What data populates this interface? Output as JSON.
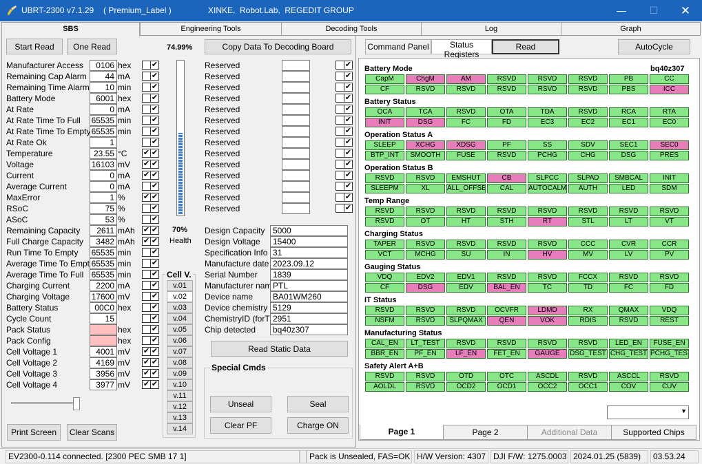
{
  "window": {
    "title": "UBRT-2300 v7.1.29",
    "label": "( Premium_Label )",
    "vendor": "XINKE,  Robot.Lab,  REGEDIT GROUP"
  },
  "main_tabs": [
    "SBS",
    "Engineering Tools",
    "Decoding Tools",
    "Log",
    "Graph"
  ],
  "buttons": {
    "start_read": "Start Read",
    "one_read": "One Read",
    "copy": "Copy Data To Decoding Board",
    "read_static": "Read Static Data",
    "print": "Print Screen",
    "clear_scans": "Clear Scans",
    "command_panel": "Command Panel",
    "status_registers": "Status Registers",
    "read": "Read",
    "autocycle": "AutoCycle"
  },
  "percent": "74.99%",
  "charge_fraction": 0.75,
  "health": {
    "value": "70%",
    "label": "Health"
  },
  "sbs": [
    {
      "label": "Manufacturer Access",
      "value": "0106",
      "unit": "hex",
      "c1": false,
      "c2": true
    },
    {
      "label": "Remaining Cap Alarm",
      "value": "44",
      "unit": "mA",
      "c1": false,
      "c2": true
    },
    {
      "label": "Remaining Time Alarm",
      "value": "10",
      "unit": "min",
      "c1": false,
      "c2": true
    },
    {
      "label": "Battery Mode",
      "value": "6001",
      "unit": "hex",
      "c1": false,
      "c2": true
    },
    {
      "label": "At Rate",
      "value": "0",
      "unit": "mA",
      "c1": false,
      "c2": true
    },
    {
      "label": "At Rate Time To Full",
      "value": "65535",
      "unit": "min",
      "c1": false,
      "c2": true
    },
    {
      "label": "At Rate Time To Empty",
      "value": "65535",
      "unit": "min",
      "c1": false,
      "c2": true
    },
    {
      "label": "At Rate Ok",
      "value": "1",
      "unit": "",
      "c1": false,
      "c2": true
    },
    {
      "label": "Temperature",
      "value": "23.55",
      "unit": "°C",
      "c1": true,
      "c2": true
    },
    {
      "label": "Voltage",
      "value": "16103",
      "unit": "mV",
      "c1": true,
      "c2": true
    },
    {
      "label": "Current",
      "value": "0",
      "unit": "mA",
      "c1": true,
      "c2": true
    },
    {
      "label": "Average Current",
      "value": "0",
      "unit": "mA",
      "c1": false,
      "c2": true
    },
    {
      "label": "MaxError",
      "value": "1",
      "unit": "%",
      "c1": true,
      "c2": true
    },
    {
      "label": "RSoC",
      "value": "75",
      "unit": "%",
      "c1": false,
      "c2": true
    },
    {
      "label": "ASoC",
      "value": "53",
      "unit": "%",
      "c1": false,
      "c2": true
    },
    {
      "label": "Remaining Capacity",
      "value": "2611",
      "unit": "mAh",
      "c1": true,
      "c2": true
    },
    {
      "label": "Full Charge Capacity",
      "value": "3482",
      "unit": "mAh",
      "c1": true,
      "c2": true
    },
    {
      "label": "Run Time To Empty",
      "value": "65535",
      "unit": "min",
      "c1": false,
      "c2": true
    },
    {
      "label": "Average Time To Empty",
      "value": "65535",
      "unit": "min",
      "c1": false,
      "c2": true
    },
    {
      "label": "Average Time To Full",
      "value": "65535",
      "unit": "min",
      "c1": false,
      "c2": true
    },
    {
      "label": "Charging Current",
      "value": "2200",
      "unit": "mA",
      "c1": false,
      "c2": true
    },
    {
      "label": "Charging Voltage",
      "value": "17600",
      "unit": "mV",
      "c1": false,
      "c2": true
    },
    {
      "label": "Battery Status",
      "value": "00C0",
      "unit": "hex",
      "c1": false,
      "c2": true
    },
    {
      "label": "Cycle Count",
      "value": "15",
      "unit": "",
      "c1": false,
      "c2": true
    },
    {
      "label": "Pack Status",
      "value": "",
      "unit": "hex",
      "c1": false,
      "c2": true,
      "pink": true
    },
    {
      "label": "Pack Config",
      "value": "",
      "unit": "hex",
      "c1": false,
      "c2": true,
      "pink": true
    },
    {
      "label": "Cell Voltage 1",
      "value": "4001",
      "unit": "mV",
      "c1": true,
      "c2": true
    },
    {
      "label": "Cell Voltage 2",
      "value": "4169",
      "unit": "mV",
      "c1": true,
      "c2": true
    },
    {
      "label": "Cell Voltage 3",
      "value": "3956",
      "unit": "mV",
      "c1": true,
      "c2": true
    },
    {
      "label": "Cell Voltage 4",
      "value": "3977",
      "unit": "mV",
      "c1": true,
      "c2": true
    }
  ],
  "reserved": [
    {
      "label": "Reserved",
      "value": "",
      "c1": false,
      "c2": true
    },
    {
      "label": "Reserved",
      "value": "",
      "c1": false,
      "c2": true
    },
    {
      "label": "Reserved",
      "value": "",
      "c1": false,
      "c2": true
    },
    {
      "label": "Reserved",
      "value": "",
      "c1": false,
      "c2": true
    },
    {
      "label": "Reserved",
      "value": "",
      "c1": false,
      "c2": true
    },
    {
      "label": "Reserved",
      "value": "",
      "c1": false,
      "c2": true
    },
    {
      "label": "Reserved",
      "value": "",
      "c1": false,
      "c2": true
    },
    {
      "label": "Reserved",
      "value": "",
      "c1": false,
      "c2": true
    },
    {
      "label": "Reserved",
      "value": "",
      "c1": false,
      "c2": true
    },
    {
      "label": "Reserved",
      "value": "",
      "c1": false,
      "c2": true
    },
    {
      "label": "Reserved",
      "value": "",
      "c1": false,
      "c2": true
    },
    {
      "label": "Reserved",
      "value": "",
      "c1": false,
      "c2": true
    },
    {
      "label": "Reserved",
      "value": "",
      "c1": false,
      "c2": true
    },
    {
      "label": "Reserved",
      "value": "",
      "c1": false,
      "c2": true
    }
  ],
  "static": [
    {
      "label": "Design Capacity",
      "value": "5000"
    },
    {
      "label": "Design Voltage",
      "value": "15400"
    },
    {
      "label": "Specification Info",
      "value": "31"
    },
    {
      "label": "Manufacture date",
      "value": "2023.09.12"
    },
    {
      "label": "Serial Number",
      "value": "1839"
    },
    {
      "label": "Manufacturer name",
      "value": "PTL"
    },
    {
      "label": "Device name",
      "value": "BA01WM260"
    },
    {
      "label": "Device chemistry",
      "value": "5129"
    },
    {
      "label": "ChemistryID (forTI)",
      "value": "2951"
    },
    {
      "label": "Chip detected",
      "value": "bq40z307"
    }
  ],
  "cell_v": {
    "title": "Cell V.",
    "buttons": [
      "v.01",
      "v.02",
      "v.03",
      "v.04",
      "v.05",
      "v.06",
      "v.07",
      "v.08",
      "v.09",
      "v.10",
      "v.11",
      "v.12",
      "v.13",
      "v.14"
    ]
  },
  "special": {
    "title": "Special Cmds",
    "unseal": "Unseal",
    "seal": "Seal",
    "clear_pf": "Clear PF",
    "charge_on": "Charge ON"
  },
  "chip": "bq40z307",
  "sections": [
    {
      "title": "Battery Mode",
      "rows": [
        [
          [
            "CapM",
            "g"
          ],
          [
            "ChgM",
            "p"
          ],
          [
            "AM",
            "p"
          ],
          [
            "RSVD",
            "g"
          ],
          [
            "RSVD",
            "g"
          ],
          [
            "RSVD",
            "g"
          ],
          [
            "PB",
            "g"
          ],
          [
            "CC",
            "g"
          ]
        ],
        [
          [
            "CF",
            "g"
          ],
          [
            "RSVD",
            "g"
          ],
          [
            "RSVD",
            "g"
          ],
          [
            "RSVD",
            "g"
          ],
          [
            "RSVD",
            "g"
          ],
          [
            "RSVD",
            "g"
          ],
          [
            "PBS",
            "g"
          ],
          [
            "ICC",
            "p"
          ]
        ]
      ]
    },
    {
      "title": "Battery Status",
      "rows": [
        [
          [
            "OCA",
            "g"
          ],
          [
            "TCA",
            "g"
          ],
          [
            "RSVD",
            "g"
          ],
          [
            "OTA",
            "g"
          ],
          [
            "TDA",
            "g"
          ],
          [
            "RSVD",
            "g"
          ],
          [
            "RCA",
            "g"
          ],
          [
            "RTA",
            "g"
          ]
        ],
        [
          [
            "INIT",
            "p"
          ],
          [
            "DSG",
            "p"
          ],
          [
            "FC",
            "g"
          ],
          [
            "FD",
            "g"
          ],
          [
            "EC3",
            "g"
          ],
          [
            "EC2",
            "g"
          ],
          [
            "EC1",
            "g"
          ],
          [
            "EC0",
            "g"
          ]
        ]
      ]
    },
    {
      "title": "Operation Status A",
      "rows": [
        [
          [
            "SLEEP",
            "g"
          ],
          [
            "XCHG",
            "p"
          ],
          [
            "XDSG",
            "p"
          ],
          [
            "PF",
            "g"
          ],
          [
            "SS",
            "g"
          ],
          [
            "SDV",
            "g"
          ],
          [
            "SEC1",
            "g"
          ],
          [
            "SEC0",
            "p"
          ]
        ],
        [
          [
            "BTP_INT",
            "g"
          ],
          [
            "SMOOTH",
            "g"
          ],
          [
            "FUSE",
            "g"
          ],
          [
            "RSVD",
            "g"
          ],
          [
            "PCHG",
            "g"
          ],
          [
            "CHG",
            "g"
          ],
          [
            "DSG",
            "g"
          ],
          [
            "PRES",
            "g"
          ]
        ]
      ]
    },
    {
      "title": "Operation Status B",
      "rows": [
        [
          [
            "RSVD",
            "g"
          ],
          [
            "RSVD",
            "g"
          ],
          [
            "EMSHUT",
            "g"
          ],
          [
            "CB",
            "p"
          ],
          [
            "SLPCC",
            "g"
          ],
          [
            "SLPAD",
            "g"
          ],
          [
            "SMBCAL",
            "g"
          ],
          [
            "INIT",
            "g"
          ]
        ],
        [
          [
            "SLEEPM",
            "g"
          ],
          [
            "XL",
            "g"
          ],
          [
            "ALL_OFFSE",
            "g"
          ],
          [
            "CAL",
            "g"
          ],
          [
            "AUTOCALM",
            "g"
          ],
          [
            "AUTH",
            "g"
          ],
          [
            "LED",
            "g"
          ],
          [
            "SDM",
            "g"
          ]
        ]
      ]
    },
    {
      "title": "Temp Range",
      "rows": [
        [
          [
            "RSVD",
            "g"
          ],
          [
            "RSVD",
            "g"
          ],
          [
            "RSVD",
            "g"
          ],
          [
            "RSVD",
            "g"
          ],
          [
            "RSVD",
            "g"
          ],
          [
            "RSVD",
            "g"
          ],
          [
            "RSVD",
            "g"
          ],
          [
            "RSVD",
            "g"
          ]
        ],
        [
          [
            "RSVD",
            "g"
          ],
          [
            "OT",
            "g"
          ],
          [
            "HT",
            "g"
          ],
          [
            "STH",
            "g"
          ],
          [
            "RT",
            "p"
          ],
          [
            "STL",
            "g"
          ],
          [
            "LT",
            "g"
          ],
          [
            "VT",
            "g"
          ]
        ]
      ]
    },
    {
      "title": "Charging Status",
      "rows": [
        [
          [
            "TAPER",
            "g"
          ],
          [
            "RSVD",
            "g"
          ],
          [
            "RSVD",
            "g"
          ],
          [
            "RSVD",
            "g"
          ],
          [
            "RSVD",
            "g"
          ],
          [
            "CCC",
            "g"
          ],
          [
            "CVR",
            "g"
          ],
          [
            "CCR",
            "g"
          ]
        ],
        [
          [
            "VCT",
            "g"
          ],
          [
            "MCHG",
            "g"
          ],
          [
            "SU",
            "g"
          ],
          [
            "IN",
            "g"
          ],
          [
            "HV",
            "p"
          ],
          [
            "MV",
            "g"
          ],
          [
            "LV",
            "g"
          ],
          [
            "PV",
            "g"
          ]
        ]
      ]
    },
    {
      "title": "Gauging Status",
      "rows": [
        [
          [
            "VDQ",
            "g"
          ],
          [
            "EDV2",
            "g"
          ],
          [
            "EDV1",
            "g"
          ],
          [
            "RSVD",
            "g"
          ],
          [
            "RSVD",
            "g"
          ],
          [
            "FCCX",
            "g"
          ],
          [
            "RSVD",
            "g"
          ],
          [
            "RSVD",
            "g"
          ]
        ],
        [
          [
            "CF",
            "g"
          ],
          [
            "DSG",
            "p"
          ],
          [
            "EDV",
            "g"
          ],
          [
            "BAL_EN",
            "p"
          ],
          [
            "TC",
            "g"
          ],
          [
            "TD",
            "g"
          ],
          [
            "FC",
            "g"
          ],
          [
            "FD",
            "g"
          ]
        ]
      ]
    },
    {
      "title": "IT Status",
      "rows": [
        [
          [
            "RSVD",
            "g"
          ],
          [
            "RSVD",
            "g"
          ],
          [
            "RSVD",
            "g"
          ],
          [
            "OCVFR",
            "g"
          ],
          [
            "LDMD",
            "p"
          ],
          [
            "RX",
            "g"
          ],
          [
            "QMAX",
            "g"
          ],
          [
            "VDQ",
            "g"
          ]
        ],
        [
          [
            "NSFM",
            "g"
          ],
          [
            "RSVD",
            "g"
          ],
          [
            "SLPQMAX",
            "g"
          ],
          [
            "QEN",
            "p"
          ],
          [
            "VOK",
            "p"
          ],
          [
            "RDIS",
            "g"
          ],
          [
            "RSVD",
            "g"
          ],
          [
            "REST",
            "g"
          ]
        ]
      ]
    },
    {
      "title": "Manufacturing Status",
      "rows": [
        [
          [
            "CAL_EN",
            "g"
          ],
          [
            "LT_TEST",
            "g"
          ],
          [
            "RSVD",
            "g"
          ],
          [
            "RSVD",
            "g"
          ],
          [
            "RSVD",
            "g"
          ],
          [
            "RSVD",
            "g"
          ],
          [
            "LED_EN",
            "g"
          ],
          [
            "FUSE_EN",
            "g"
          ]
        ],
        [
          [
            "BBR_EN",
            "g"
          ],
          [
            "PF_EN",
            "g"
          ],
          [
            "LF_EN",
            "p"
          ],
          [
            "FET_EN",
            "g"
          ],
          [
            "GAUGE",
            "p"
          ],
          [
            "DSG_TEST",
            "g"
          ],
          [
            "CHG_TEST",
            "g"
          ],
          [
            "PCHG_TEST",
            "g"
          ]
        ]
      ]
    },
    {
      "title": "Safety Alert A+B",
      "rows": [
        [
          [
            "RSVD",
            "g"
          ],
          [
            "RSVD",
            "g"
          ],
          [
            "OTD",
            "g"
          ],
          [
            "OTC",
            "g"
          ],
          [
            "ASCDL",
            "g"
          ],
          [
            "RSVD",
            "g"
          ],
          [
            "ASCCL",
            "g"
          ],
          [
            "RSVD",
            "g"
          ]
        ],
        [
          [
            "AOLDL",
            "g"
          ],
          [
            "RSVD",
            "g"
          ],
          [
            "OCD2",
            "g"
          ],
          [
            "OCD1",
            "g"
          ],
          [
            "OCC2",
            "g"
          ],
          [
            "OCC1",
            "g"
          ],
          [
            "COV",
            "g"
          ],
          [
            "CUV",
            "g"
          ]
        ]
      ]
    }
  ],
  "bottom_tabs": [
    "Page 1",
    "Page 2",
    "Additional Data",
    "Supported Chips"
  ],
  "status_bar": [
    "EV2300-0.114 connected. [2300  PEC  SMB  17 1]",
    "",
    "Pack is Unsealed, FAS=OK",
    "H/W Version: 4307",
    "DJI F/W: 1275.0003",
    "2024.01.25  (5839)",
    "03.53.24"
  ],
  "colors": {
    "green": "#88e688",
    "pink": "#e77dbb",
    "titlebar": "#1c65bd"
  }
}
